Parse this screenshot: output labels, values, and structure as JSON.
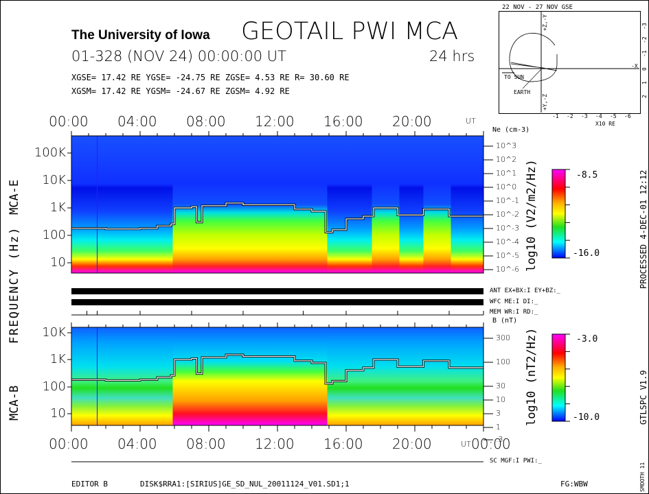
{
  "header": {
    "institution": "The University of Iowa",
    "instrument": "GEOTAIL PWI MCA",
    "date": "01-328 (NOV 24) 00:00:00 UT",
    "duration": "24 hrs",
    "gse": "XGSE=  17.42 RE  YGSE= -24.75 RE  ZGSE=   4.53 RE  R= 30.60 RE",
    "gsm": "XGSM=  17.42 RE  YGSM= -24.67 RE  ZGSM=   4.92 RE"
  },
  "orbit": {
    "title": "22 NOV - 27 NOV  GSE",
    "to_sun": "TO SUN",
    "earth": "EARTH",
    "xlabel": "X10 RE",
    "x_axis": "-X",
    "y_top": "+Z,-Y",
    "y_bottom": "+Y,-Z",
    "x_ticks": [
      "-1",
      "-2",
      "-3",
      "-4",
      "-5",
      "-6"
    ],
    "y_ticks": [
      "-3",
      "-2",
      "-1",
      "0",
      "1",
      "2"
    ]
  },
  "time_ticks": [
    "00:00",
    "04:00",
    "08:00",
    "12:00",
    "16:00",
    "20:00"
  ],
  "time_end": "00:00",
  "ut": "UT",
  "ylabel_frequency": "FREQUENCY (Hz)",
  "status": {
    "ant": "ANT EX+BX:I  EY+BZ:_",
    "wfc": "WFC ME:I     DI:_",
    "mem": "MEM WR:I     RD:_",
    "sc": "SC MGF:I  PWI:_"
  },
  "side": {
    "processed": "PROCESSED  4-DEC-01  12:12",
    "version": "GTLSPC  V1.9",
    "smooth": "SMOOTH 11"
  },
  "footer": {
    "editor": "EDITOR B",
    "file": "DISK$RRA1:[SIRIUS]GE_SD_NUL_20011124_V01.SD1;1",
    "fg": "FG:WBW"
  },
  "chart_data": [
    {
      "type": "heatmap",
      "panel": "MCA-E",
      "ylabel": "MCA-E",
      "y_ticks": [
        "100K",
        "10K",
        "1K",
        "100",
        "10"
      ],
      "right_axis_label": "Ne (cm-3)",
      "right_ticks": [
        "10^3",
        "10^2",
        "10^1",
        "10^0",
        "10^-1",
        "10^-2",
        "10^-3",
        "10^-4",
        "10^-5",
        "10^-6"
      ],
      "colorbar": {
        "label": "log10 (V2/m2/Hz)",
        "max": "-8.5",
        "min": "-16.0"
      },
      "x_range_hours": [
        0,
        24
      ],
      "y_range_hz": [
        5,
        300000
      ],
      "y_scale": "log",
      "trace_hours": [
        0,
        2,
        4,
        5,
        5.8,
        6,
        7,
        7.3,
        7.6,
        9,
        10,
        12,
        13,
        14,
        14.8,
        15.2,
        16,
        17,
        17.6,
        19,
        20.5,
        22,
        24
      ],
      "trace_hz": [
        180,
        170,
        180,
        220,
        260,
        1000,
        1100,
        300,
        1200,
        1500,
        1300,
        1300,
        900,
        750,
        130,
        160,
        400,
        500,
        1000,
        550,
        900,
        500,
        500
      ],
      "active_hours": [
        [
          5.9,
          14.9
        ],
        [
          17.5,
          19.1
        ],
        [
          20.5,
          22.1
        ]
      ]
    },
    {
      "type": "heatmap",
      "panel": "MCA-B",
      "ylabel": "MCA-B",
      "y_ticks": [
        "10K",
        "1K",
        "100",
        "10"
      ],
      "right_axis_label": "B (nT)",
      "right_ticks": [
        "300",
        "100",
        "30",
        "10",
        "3",
        "1",
        ".3"
      ],
      "colorbar": {
        "label": "log10 (nT2/Hz)",
        "max": "-3.0",
        "min": "-10.0"
      },
      "x_range_hours": [
        0,
        24
      ],
      "y_range_hz": [
        5,
        15000
      ],
      "y_scale": "log",
      "trace_hours": [
        0,
        2,
        4,
        5,
        5.8,
        6,
        7,
        7.3,
        7.6,
        9,
        10,
        12,
        13,
        14,
        14.8,
        15.2,
        16,
        17,
        17.6,
        19,
        20.5,
        22,
        24
      ],
      "trace_hz": [
        180,
        170,
        180,
        220,
        260,
        1000,
        1100,
        300,
        1200,
        1500,
        1300,
        1300,
        900,
        750,
        130,
        160,
        400,
        500,
        1000,
        550,
        900,
        500,
        500
      ],
      "active_hours": [
        [
          5.9,
          14.9
        ]
      ]
    }
  ]
}
